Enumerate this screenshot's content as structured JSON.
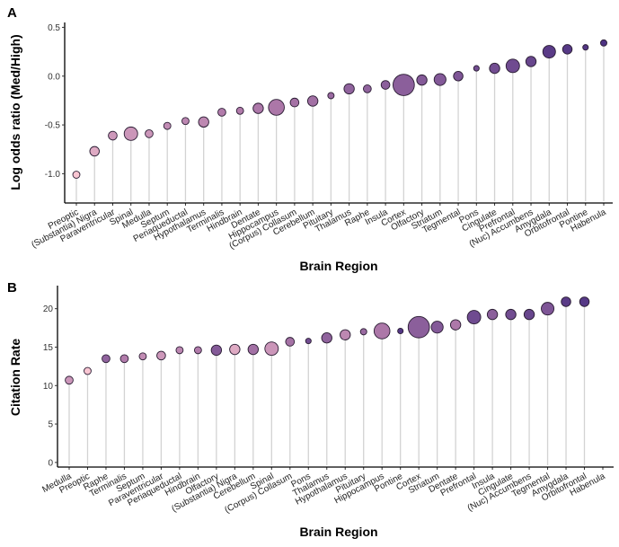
{
  "chart_data": [
    {
      "type": "scatter",
      "subtype": "lollipop",
      "panel_label": "A",
      "xlabel": "Brain Region",
      "ylabel": "Log odds ratio (Med/High)",
      "ylim": [
        -1.3,
        0.55
      ],
      "yticks": [
        -1.0,
        -0.5,
        0.0,
        0.5
      ],
      "ytick_labels": [
        "-1.0",
        "-0.5",
        "0.0",
        "0.5"
      ],
      "grid": false,
      "categories": [
        "Preoptic",
        "(Substantia) Nigra",
        "Paraventricular",
        "Spinal",
        "Medulla",
        "Septum",
        "Periaqueductal",
        "Hypothalamus",
        "Terminalis",
        "Hindbrain",
        "Dentate",
        "Hippocampus",
        "(Corpus) Collasum",
        "Cerebellum",
        "Pituitary",
        "Thalamus",
        "Raphe",
        "Insula",
        "Cortex",
        "Olfactory",
        "Striatum",
        "Tegmental",
        "Pons",
        "Cingulate",
        "Prefrontal",
        "(Nuc) Accumbens",
        "Amygdala",
        "Orbitofrontal",
        "Pontine",
        "Habenula"
      ],
      "values": [
        -1.01,
        -0.77,
        -0.61,
        -0.59,
        -0.59,
        -0.51,
        -0.46,
        -0.47,
        -0.37,
        -0.355,
        -0.33,
        -0.32,
        -0.27,
        -0.255,
        -0.2,
        -0.13,
        -0.13,
        -0.09,
        -0.09,
        -0.04,
        -0.035,
        0.0,
        0.08,
        0.08,
        0.105,
        0.15,
        0.25,
        0.275,
        0.295,
        0.34
      ],
      "sizes": [
        9,
        12,
        11,
        17,
        10,
        9,
        9,
        13,
        10,
        9,
        13,
        20,
        11,
        13,
        8,
        13,
        10,
        11,
        27,
        13,
        15,
        12,
        7,
        13,
        17,
        13,
        16,
        12,
        7,
        8
      ]
    },
    {
      "type": "scatter",
      "subtype": "lollipop",
      "panel_label": "B",
      "xlabel": "Brain Region",
      "ylabel": "Citation Rate",
      "ylim": [
        -0.6,
        23
      ],
      "yticks": [
        0,
        5,
        10,
        15,
        20
      ],
      "ytick_labels": [
        "0",
        "5",
        "10",
        "15",
        "20"
      ],
      "grid": false,
      "categories": [
        "Medulla",
        "Preoptic",
        "Raphe",
        "Terminalis",
        "Septum",
        "Paraventricular",
        "Periaqueductal",
        "Hindbrain",
        "Olfactory",
        "(Substantia) Nigra",
        "Cerebellum",
        "Spinal",
        "(Corpus) Collasum",
        "Pons",
        "Thalamus",
        "Hypothalamus",
        "Pituitary",
        "Hippocampus",
        "Pontine",
        "Cortex",
        "Striatum",
        "Dentate",
        "Prefrontal",
        "Insula",
        "Cingulate",
        "(Nuc) Accumbens",
        "Tegmental",
        "Amygdala",
        "Orbitofrontal",
        "Habenula"
      ],
      "values": [
        10.7,
        11.9,
        13.5,
        13.5,
        13.8,
        13.9,
        14.6,
        14.6,
        14.6,
        14.7,
        14.7,
        14.8,
        15.7,
        15.8,
        16.2,
        16.6,
        17.0,
        17.1,
        17.1,
        17.6,
        17.6,
        17.9,
        18.9,
        19.25,
        19.25,
        19.25,
        20.0,
        20.9,
        20.9,
        null
      ],
      "sizes": [
        10,
        9,
        10,
        10,
        9,
        11,
        9,
        9,
        13,
        13,
        13,
        17,
        11,
        7,
        13,
        13,
        8,
        20,
        7,
        27,
        15,
        13,
        17,
        13,
        13,
        13,
        16,
        12,
        12,
        null
      ]
    }
  ],
  "colors": {
    "low": "#f9c6d2",
    "mid": "#b07aaa",
    "high": "#4d3282",
    "stem": "#d3d3d3",
    "outline": "#2a1d33"
  }
}
